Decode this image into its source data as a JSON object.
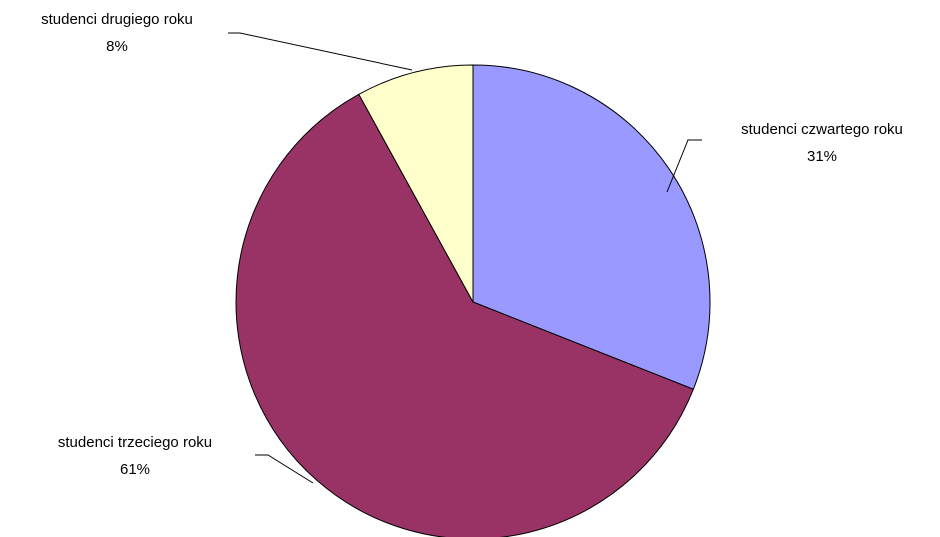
{
  "chart_data": {
    "type": "pie",
    "categories": [
      "studenci czwartego roku",
      "studenci trzeciego roku",
      "studenci drugiego roku"
    ],
    "values": [
      31,
      61,
      8
    ],
    "value_labels": [
      "31%",
      "61%",
      "8%"
    ],
    "colors": [
      "#9999ff",
      "#993366",
      "#ffffcc"
    ]
  }
}
